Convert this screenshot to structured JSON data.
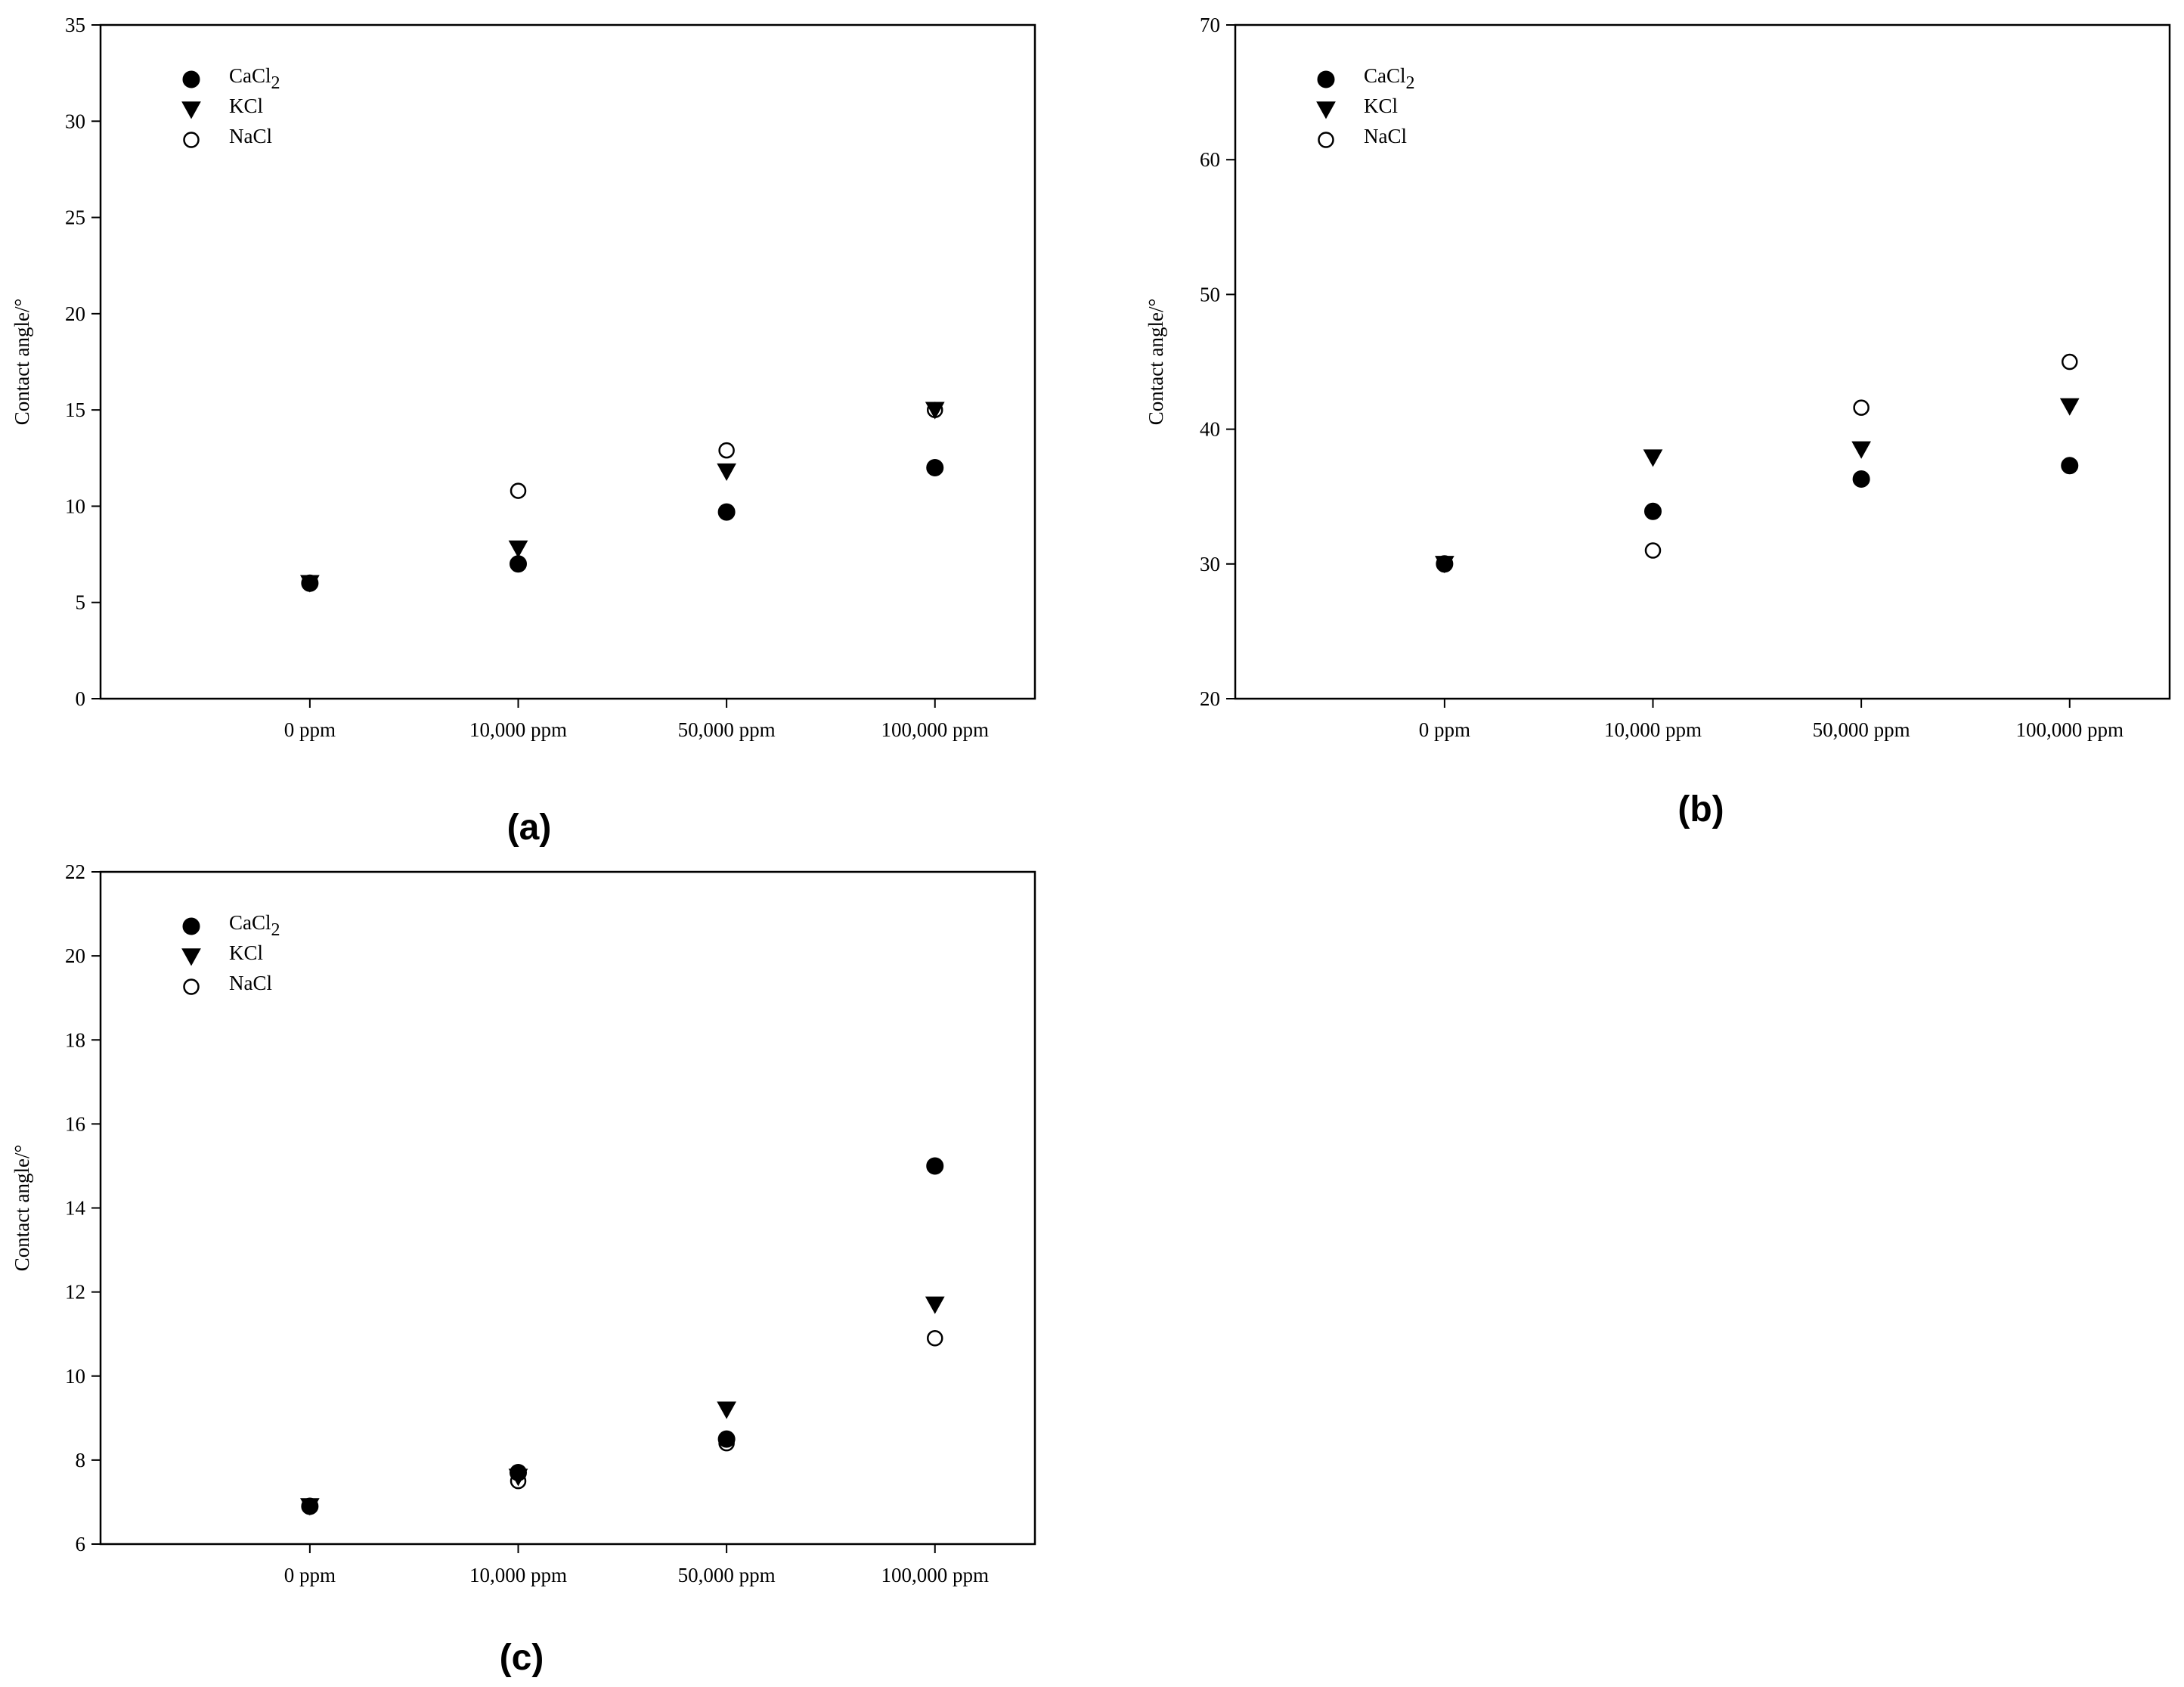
{
  "chart_data": [
    {
      "type": "scatter",
      "panel_label": "(a)",
      "ylabel": "Contact angle/°",
      "ylim": [
        0,
        35
      ],
      "yticks": [
        0,
        5,
        10,
        15,
        20,
        25,
        30,
        35
      ],
      "categories": [
        "0 ppm",
        "10,000 ppm",
        "50,000 ppm",
        "100,000 ppm"
      ],
      "legend_position": "top-left",
      "grid": false,
      "series": [
        {
          "name": "CaCl",
          "name_sub": "2",
          "marker": "filled-circle",
          "values": [
            6.0,
            7.0,
            9.7,
            12.0
          ]
        },
        {
          "name": "KCl",
          "marker": "filled-triangle-down",
          "values": [
            6.0,
            7.8,
            11.8,
            15.0
          ]
        },
        {
          "name": "NaCl",
          "marker": "open-circle",
          "values": [
            6.0,
            10.8,
            12.9,
            15.0
          ]
        }
      ]
    },
    {
      "type": "scatter",
      "panel_label": "(b)",
      "ylabel": "Contact angle/°",
      "ylim": [
        20,
        70
      ],
      "yticks": [
        20,
        30,
        40,
        50,
        60,
        70
      ],
      "categories": [
        "0 ppm",
        "10,000 ppm",
        "50,000 ppm",
        "100,000 ppm"
      ],
      "legend_position": "top-left",
      "grid": false,
      "series": [
        {
          "name": "CaCl",
          "name_sub": "2",
          "marker": "filled-circle",
          "values": [
            30.0,
            33.9,
            36.3,
            37.3
          ]
        },
        {
          "name": "KCl",
          "marker": "filled-triangle-down",
          "values": [
            30.0,
            37.9,
            38.5,
            41.7
          ]
        },
        {
          "name": "NaCl",
          "marker": "open-circle",
          "values": [
            30.0,
            31.0,
            41.6,
            45.0
          ]
        }
      ]
    },
    {
      "type": "scatter",
      "panel_label": "(c)",
      "ylabel": "Contact angle/°",
      "ylim": [
        6,
        22
      ],
      "yticks": [
        6,
        8,
        10,
        12,
        14,
        16,
        18,
        20,
        22
      ],
      "categories": [
        "0 ppm",
        "10,000 ppm",
        "50,000 ppm",
        "100,000 ppm"
      ],
      "legend_position": "top-left",
      "grid": false,
      "series": [
        {
          "name": "CaCl",
          "name_sub": "2",
          "marker": "filled-circle",
          "values": [
            6.9,
            7.7,
            8.5,
            15.0
          ]
        },
        {
          "name": "KCl",
          "marker": "filled-triangle-down",
          "values": [
            6.9,
            7.6,
            9.2,
            11.7
          ]
        },
        {
          "name": "NaCl",
          "marker": "open-circle",
          "values": [
            6.9,
            7.5,
            8.4,
            10.9
          ]
        }
      ]
    }
  ]
}
